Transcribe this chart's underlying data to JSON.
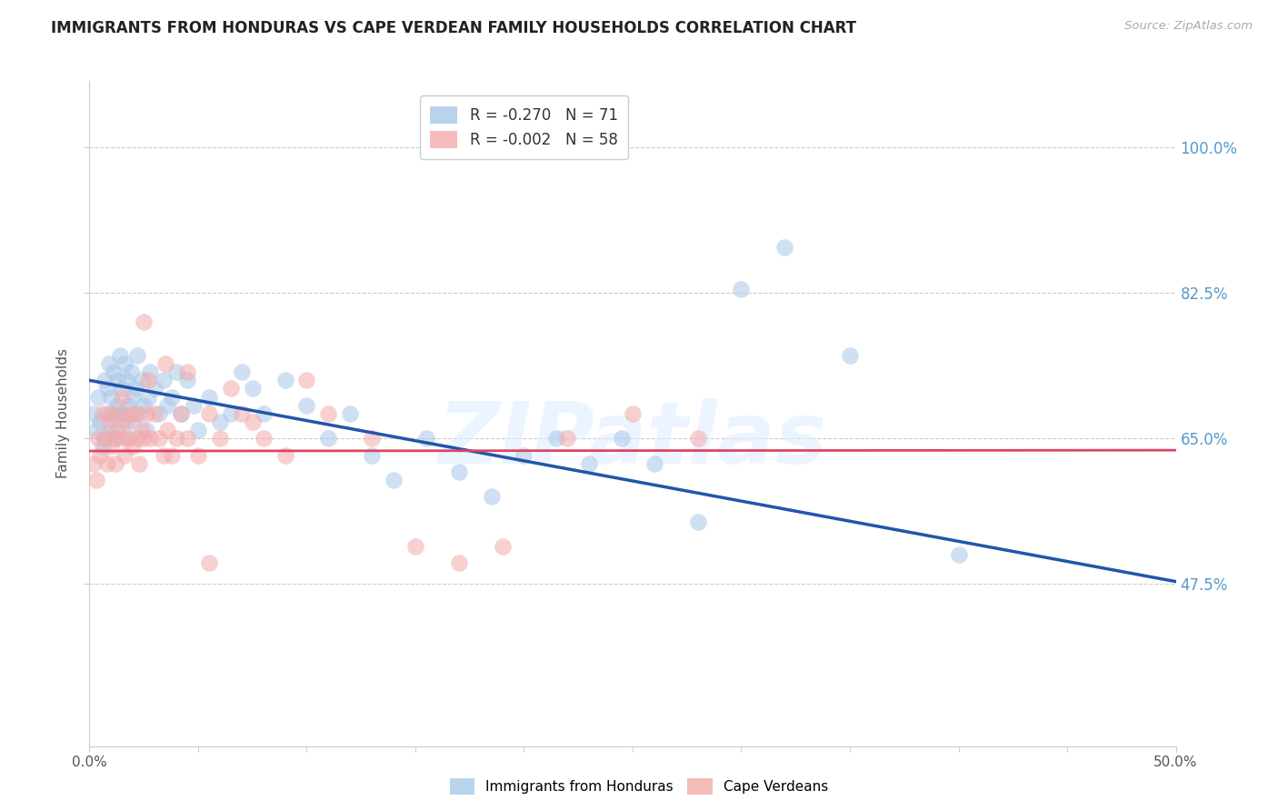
{
  "title": "IMMIGRANTS FROM HONDURAS VS CAPE VERDEAN FAMILY HOUSEHOLDS CORRELATION CHART",
  "source": "Source: ZipAtlas.com",
  "ylabel": "Family Households",
  "ytick_labels": [
    "100.0%",
    "82.5%",
    "65.0%",
    "47.5%"
  ],
  "ytick_values": [
    1.0,
    0.825,
    0.65,
    0.475
  ],
  "xlim": [
    0.0,
    0.5
  ],
  "ylim": [
    0.28,
    1.08
  ],
  "legend_blue_r": "-0.270",
  "legend_blue_n": "71",
  "legend_pink_r": "-0.002",
  "legend_pink_n": "58",
  "blue_color": "#a8c8e8",
  "pink_color": "#f4aaaa",
  "line_blue": "#2255aa",
  "line_pink": "#dd4466",
  "watermark": "ZIPatlas",
  "blue_scatter_x": [
    0.002,
    0.003,
    0.004,
    0.005,
    0.006,
    0.007,
    0.007,
    0.008,
    0.008,
    0.009,
    0.01,
    0.01,
    0.011,
    0.012,
    0.012,
    0.013,
    0.013,
    0.014,
    0.015,
    0.015,
    0.016,
    0.016,
    0.017,
    0.018,
    0.018,
    0.019,
    0.02,
    0.02,
    0.021,
    0.022,
    0.023,
    0.024,
    0.025,
    0.026,
    0.027,
    0.028,
    0.03,
    0.032,
    0.034,
    0.036,
    0.038,
    0.04,
    0.042,
    0.045,
    0.048,
    0.05,
    0.055,
    0.06,
    0.065,
    0.07,
    0.075,
    0.08,
    0.09,
    0.1,
    0.11,
    0.12,
    0.13,
    0.14,
    0.155,
    0.17,
    0.185,
    0.2,
    0.215,
    0.23,
    0.245,
    0.26,
    0.28,
    0.3,
    0.32,
    0.35,
    0.4
  ],
  "blue_scatter_y": [
    0.68,
    0.66,
    0.7,
    0.67,
    0.64,
    0.72,
    0.65,
    0.68,
    0.71,
    0.74,
    0.66,
    0.7,
    0.73,
    0.68,
    0.65,
    0.72,
    0.69,
    0.75,
    0.67,
    0.71,
    0.74,
    0.68,
    0.72,
    0.69,
    0.65,
    0.73,
    0.7,
    0.67,
    0.71,
    0.75,
    0.68,
    0.72,
    0.69,
    0.66,
    0.7,
    0.73,
    0.71,
    0.68,
    0.72,
    0.69,
    0.7,
    0.73,
    0.68,
    0.72,
    0.69,
    0.66,
    0.7,
    0.67,
    0.68,
    0.73,
    0.71,
    0.68,
    0.72,
    0.69,
    0.65,
    0.68,
    0.63,
    0.6,
    0.65,
    0.61,
    0.58,
    0.63,
    0.65,
    0.62,
    0.65,
    0.62,
    0.55,
    0.83,
    0.88,
    0.75,
    0.51
  ],
  "pink_scatter_x": [
    0.002,
    0.003,
    0.004,
    0.005,
    0.006,
    0.007,
    0.008,
    0.009,
    0.01,
    0.01,
    0.011,
    0.012,
    0.013,
    0.014,
    0.015,
    0.015,
    0.016,
    0.017,
    0.018,
    0.019,
    0.02,
    0.021,
    0.022,
    0.023,
    0.024,
    0.025,
    0.026,
    0.027,
    0.028,
    0.03,
    0.032,
    0.034,
    0.036,
    0.038,
    0.04,
    0.042,
    0.045,
    0.05,
    0.055,
    0.06,
    0.07,
    0.08,
    0.09,
    0.1,
    0.11,
    0.13,
    0.15,
    0.17,
    0.19,
    0.22,
    0.25,
    0.28,
    0.025,
    0.035,
    0.045,
    0.055,
    0.065,
    0.075
  ],
  "pink_scatter_y": [
    0.62,
    0.6,
    0.65,
    0.63,
    0.68,
    0.65,
    0.62,
    0.67,
    0.64,
    0.68,
    0.65,
    0.62,
    0.66,
    0.68,
    0.65,
    0.7,
    0.63,
    0.67,
    0.65,
    0.68,
    0.64,
    0.68,
    0.65,
    0.62,
    0.66,
    0.65,
    0.68,
    0.72,
    0.65,
    0.68,
    0.65,
    0.63,
    0.66,
    0.63,
    0.65,
    0.68,
    0.65,
    0.63,
    0.5,
    0.65,
    0.68,
    0.65,
    0.63,
    0.72,
    0.68,
    0.65,
    0.52,
    0.5,
    0.52,
    0.65,
    0.68,
    0.65,
    0.79,
    0.74,
    0.73,
    0.68,
    0.71,
    0.67
  ],
  "blue_line_x": [
    0.0,
    0.5
  ],
  "blue_line_y": [
    0.72,
    0.478
  ],
  "pink_line_x": [
    0.0,
    0.5
  ],
  "pink_line_y": [
    0.635,
    0.636
  ],
  "grid_color": "#cccccc",
  "background_color": "#ffffff",
  "title_fontsize": 12,
  "axis_label_fontsize": 11
}
